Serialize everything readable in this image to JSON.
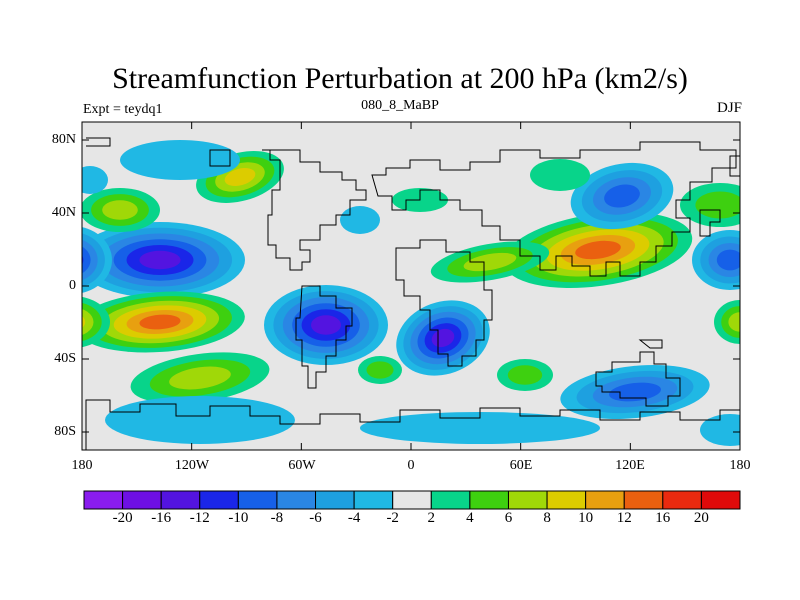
{
  "title": "Streamfunction Perturbation at 200 hPa (km2/s)",
  "left_subtitle": "Expt = teydq1",
  "center_subtitle": "080_8_MaBP",
  "right_subtitle": "DJF",
  "lat_ticks": [
    "80N",
    "40N",
    "0",
    "40S",
    "80S"
  ],
  "lon_ticks": [
    "180",
    "120W",
    "60W",
    "0",
    "60E",
    "120E",
    "180"
  ],
  "colorbar": {
    "labels": [
      "-20",
      "-16",
      "-12",
      "-10",
      "-8",
      "-6",
      "-4",
      "-2",
      "2",
      "4",
      "6",
      "8",
      "10",
      "12",
      "16",
      "20"
    ],
    "colors": [
      "#8a1cef",
      "#6e10e4",
      "#5314e0",
      "#1a26e8",
      "#1660e8",
      "#2a86e4",
      "#1ea0e0",
      "#20b8e4",
      "#e6e6e6",
      "#08d48a",
      "#3ed010",
      "#a0d808",
      "#dccc00",
      "#e8a010",
      "#ea6010",
      "#ea2a10",
      "#e00a0a"
    ]
  },
  "field_colors": {
    "neutral": "#e6e6e6",
    "neg": [
      "#20b8e4",
      "#1ea0e0",
      "#2a86e4",
      "#1660e8",
      "#1a26e8",
      "#5314e0",
      "#6e10e4"
    ],
    "pos": [
      "#08d48a",
      "#3ed010",
      "#a0d808",
      "#dccc00",
      "#e8a010",
      "#ea6010",
      "#ea2a10"
    ]
  }
}
